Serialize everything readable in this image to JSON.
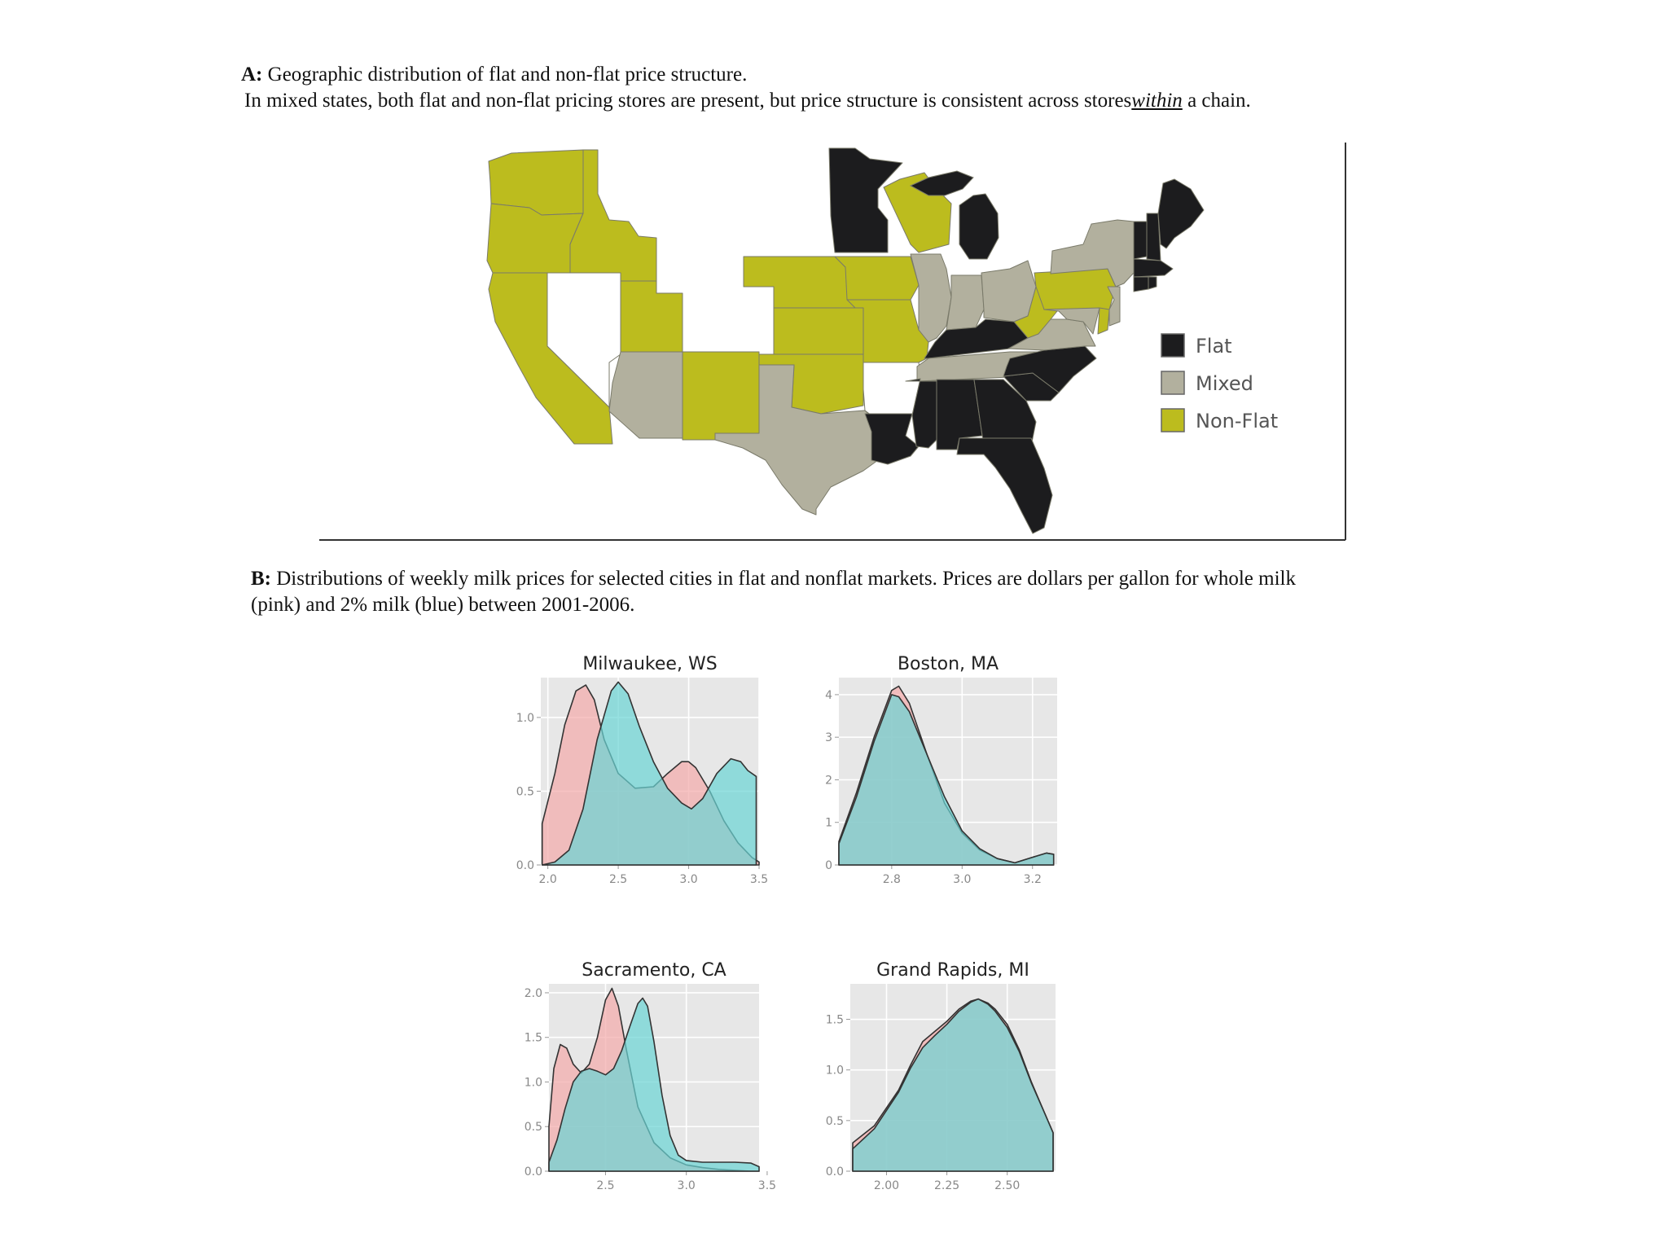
{
  "panel_a": {
    "caption_label": "A:",
    "caption_line1": "Geographic distribution of flat and non-flat price structure.",
    "caption_line2_pre": "In mixed states, both flat and non-flat pricing stores are present, but price structure is consistent across stores",
    "caption_line2_em": "within",
    "caption_line2_post": "a chain.",
    "colors": {
      "flat": "#1c1c1e",
      "mixed": "#b2b09e",
      "nonflat": "#bcbc1e",
      "nodata": "#ffffff",
      "border": "#7a7a6a"
    },
    "legend": [
      {
        "key": "flat",
        "label": "Flat"
      },
      {
        "key": "mixed",
        "label": "Mixed"
      },
      {
        "key": "nonflat",
        "label": "Non-Flat"
      }
    ],
    "states": {
      "flat": [
        "MN",
        "MI",
        "ME",
        "NH",
        "VT",
        "MA",
        "CT",
        "RI",
        "LA",
        "MS",
        "AL",
        "GA",
        "FL",
        "SC",
        "NC",
        "KY"
      ],
      "mixed": [
        "NY",
        "IL",
        "IN",
        "OH",
        "TN",
        "VA",
        "NJ",
        "MD",
        "AZ",
        "TX"
      ],
      "nonflat": [
        "WA",
        "OR",
        "CA",
        "ID",
        "UT",
        "NM",
        "NE",
        "KS",
        "OK",
        "IA",
        "MO",
        "WI",
        "PA",
        "WV",
        "DE"
      ],
      "nodata": [
        "NV",
        "AR"
      ]
    }
  },
  "panel_b": {
    "caption_label": "B:",
    "caption_line1": "Distributions of  weekly milk prices for selected cities in flat and nonflat markets. Prices are dollars per gallon for whole milk",
    "caption_line2": "(pink) and 2% milk (blue) between 2001-2006.",
    "colors": {
      "whole": "#f4a9a9",
      "two_percent": "#69d4d4",
      "grid_bg": "#e7e7e7",
      "grid_line": "#ffffff",
      "axis_text": "#888888"
    }
  },
  "chart_data": [
    {
      "type": "area",
      "title": "Milwaukee, WS",
      "xlim": [
        1.95,
        3.5
      ],
      "ylim": [
        0,
        1.27
      ],
      "xticks": [
        "2.0",
        "2.5",
        "3.0",
        "3.5"
      ],
      "yticks": [
        "0.0",
        "0.5",
        "1.0"
      ],
      "series": [
        {
          "key": "whole",
          "values": [
            [
              1.96,
              0.28
            ],
            [
              2.05,
              0.62
            ],
            [
              2.12,
              0.95
            ],
            [
              2.2,
              1.18
            ],
            [
              2.27,
              1.22
            ],
            [
              2.33,
              1.12
            ],
            [
              2.4,
              0.85
            ],
            [
              2.5,
              0.62
            ],
            [
              2.62,
              0.52
            ],
            [
              2.75,
              0.53
            ],
            [
              2.85,
              0.62
            ],
            [
              2.95,
              0.7
            ],
            [
              3.0,
              0.7
            ],
            [
              3.05,
              0.66
            ],
            [
              3.15,
              0.5
            ],
            [
              3.25,
              0.3
            ],
            [
              3.35,
              0.15
            ],
            [
              3.45,
              0.05
            ],
            [
              3.5,
              0.02
            ]
          ]
        },
        {
          "key": "two_percent",
          "values": [
            [
              1.96,
              0.0
            ],
            [
              2.05,
              0.02
            ],
            [
              2.15,
              0.1
            ],
            [
              2.25,
              0.38
            ],
            [
              2.35,
              0.85
            ],
            [
              2.45,
              1.18
            ],
            [
              2.5,
              1.24
            ],
            [
              2.57,
              1.16
            ],
            [
              2.65,
              0.94
            ],
            [
              2.75,
              0.7
            ],
            [
              2.85,
              0.52
            ],
            [
              2.95,
              0.42
            ],
            [
              3.02,
              0.38
            ],
            [
              3.1,
              0.45
            ],
            [
              3.2,
              0.62
            ],
            [
              3.3,
              0.72
            ],
            [
              3.37,
              0.7
            ],
            [
              3.42,
              0.64
            ],
            [
              3.48,
              0.6
            ]
          ]
        }
      ]
    },
    {
      "type": "area",
      "title": "Boston, MA",
      "xlim": [
        2.65,
        3.27
      ],
      "ylim": [
        0,
        4.4
      ],
      "xticks": [
        "2.8",
        "3.0",
        "3.2"
      ],
      "yticks": [
        "0",
        "1",
        "2",
        "3",
        "4"
      ],
      "series": [
        {
          "key": "whole",
          "values": [
            [
              2.65,
              0.55
            ],
            [
              2.7,
              1.7
            ],
            [
              2.75,
              3.0
            ],
            [
              2.8,
              4.1
            ],
            [
              2.82,
              4.2
            ],
            [
              2.85,
              3.8
            ],
            [
              2.9,
              2.6
            ],
            [
              2.95,
              1.45
            ],
            [
              3.0,
              0.75
            ],
            [
              3.05,
              0.35
            ],
            [
              3.1,
              0.15
            ],
            [
              3.15,
              0.05
            ],
            [
              3.2,
              0.18
            ],
            [
              3.24,
              0.28
            ],
            [
              3.26,
              0.25
            ]
          ]
        },
        {
          "key": "two_percent",
          "values": [
            [
              2.65,
              0.5
            ],
            [
              2.7,
              1.6
            ],
            [
              2.75,
              2.9
            ],
            [
              2.8,
              4.0
            ],
            [
              2.82,
              3.95
            ],
            [
              2.85,
              3.6
            ],
            [
              2.88,
              3.0
            ],
            [
              2.92,
              2.2
            ],
            [
              2.95,
              1.6
            ],
            [
              3.0,
              0.8
            ],
            [
              3.05,
              0.38
            ],
            [
              3.1,
              0.15
            ],
            [
              3.15,
              0.05
            ],
            [
              3.2,
              0.18
            ],
            [
              3.24,
              0.28
            ],
            [
              3.26,
              0.25
            ]
          ]
        }
      ]
    },
    {
      "type": "area",
      "title": "Sacramento, CA",
      "xlim": [
        2.15,
        3.45
      ],
      "ylim": [
        0,
        2.1
      ],
      "xticks": [
        "2.5",
        "3.0",
        "3.5"
      ],
      "yticks": [
        "0.0",
        "0.5",
        "1.0",
        "1.5",
        "2.0"
      ],
      "series": [
        {
          "key": "whole",
          "values": [
            [
              2.15,
              0.5
            ],
            [
              2.18,
              1.15
            ],
            [
              2.22,
              1.42
            ],
            [
              2.26,
              1.38
            ],
            [
              2.3,
              1.2
            ],
            [
              2.35,
              1.1
            ],
            [
              2.4,
              1.2
            ],
            [
              2.45,
              1.5
            ],
            [
              2.5,
              1.92
            ],
            [
              2.54,
              2.05
            ],
            [
              2.58,
              1.85
            ],
            [
              2.63,
              1.35
            ],
            [
              2.7,
              0.72
            ],
            [
              2.8,
              0.32
            ],
            [
              2.9,
              0.15
            ],
            [
              3.0,
              0.07
            ],
            [
              3.1,
              0.04
            ],
            [
              3.2,
              0.02
            ],
            [
              3.3,
              0.01
            ],
            [
              3.4,
              0.0
            ],
            [
              3.45,
              0.0
            ]
          ]
        },
        {
          "key": "two_percent",
          "values": [
            [
              2.15,
              0.1
            ],
            [
              2.2,
              0.35
            ],
            [
              2.25,
              0.7
            ],
            [
              2.3,
              1.0
            ],
            [
              2.35,
              1.12
            ],
            [
              2.4,
              1.15
            ],
            [
              2.45,
              1.12
            ],
            [
              2.5,
              1.08
            ],
            [
              2.55,
              1.15
            ],
            [
              2.6,
              1.35
            ],
            [
              2.65,
              1.62
            ],
            [
              2.7,
              1.88
            ],
            [
              2.73,
              1.94
            ],
            [
              2.76,
              1.85
            ],
            [
              2.8,
              1.45
            ],
            [
              2.85,
              0.85
            ],
            [
              2.9,
              0.4
            ],
            [
              2.95,
              0.18
            ],
            [
              3.0,
              0.12
            ],
            [
              3.1,
              0.1
            ],
            [
              3.2,
              0.1
            ],
            [
              3.3,
              0.1
            ],
            [
              3.4,
              0.09
            ],
            [
              3.45,
              0.05
            ]
          ]
        }
      ]
    },
    {
      "type": "area",
      "title": "Grand Rapids, MI",
      "xlim": [
        1.85,
        2.7
      ],
      "ylim": [
        0,
        1.85
      ],
      "xticks": [
        "2.00",
        "2.25",
        "2.50"
      ],
      "yticks": [
        "0.0",
        "0.5",
        "1.0",
        "1.5"
      ],
      "series": [
        {
          "key": "whole",
          "values": [
            [
              1.86,
              0.28
            ],
            [
              1.95,
              0.45
            ],
            [
              2.05,
              0.8
            ],
            [
              2.1,
              1.05
            ],
            [
              2.15,
              1.28
            ],
            [
              2.2,
              1.38
            ],
            [
              2.25,
              1.48
            ],
            [
              2.3,
              1.6
            ],
            [
              2.35,
              1.68
            ],
            [
              2.38,
              1.7
            ],
            [
              2.42,
              1.66
            ],
            [
              2.45,
              1.6
            ],
            [
              2.5,
              1.45
            ],
            [
              2.55,
              1.2
            ],
            [
              2.6,
              0.88
            ],
            [
              2.65,
              0.6
            ],
            [
              2.69,
              0.38
            ]
          ]
        },
        {
          "key": "two_percent",
          "values": [
            [
              1.86,
              0.22
            ],
            [
              1.95,
              0.42
            ],
            [
              2.05,
              0.78
            ],
            [
              2.1,
              1.02
            ],
            [
              2.15,
              1.22
            ],
            [
              2.2,
              1.34
            ],
            [
              2.25,
              1.45
            ],
            [
              2.3,
              1.58
            ],
            [
              2.35,
              1.67
            ],
            [
              2.38,
              1.7
            ],
            [
              2.42,
              1.65
            ],
            [
              2.45,
              1.58
            ],
            [
              2.5,
              1.42
            ],
            [
              2.55,
              1.18
            ],
            [
              2.6,
              0.87
            ],
            [
              2.65,
              0.6
            ],
            [
              2.69,
              0.38
            ]
          ]
        }
      ]
    }
  ]
}
